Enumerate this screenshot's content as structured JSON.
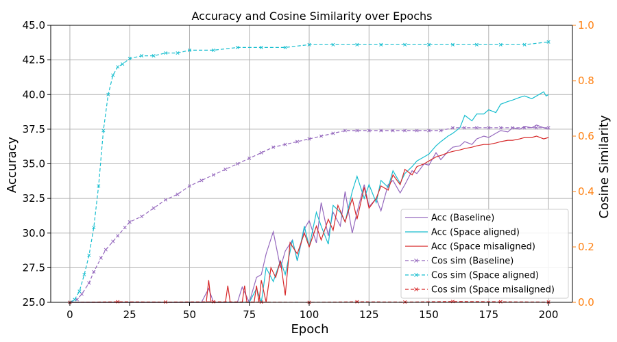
{
  "chart_data": {
    "type": "line",
    "title": "Accuracy and Cosine Similarity over Epochs",
    "xlabel": "Epoch",
    "ylabel": "Accuracy",
    "y2label": "Cosine Similarity",
    "xlim": [
      -8,
      210
    ],
    "ylim": [
      25.0,
      45.0
    ],
    "y2lim": [
      0.0,
      1.0
    ],
    "xticks": [
      0,
      25,
      50,
      75,
      100,
      125,
      150,
      175,
      200
    ],
    "yticks": [
      25.0,
      27.5,
      30.0,
      32.5,
      35.0,
      37.5,
      40.0,
      42.5,
      45.0
    ],
    "ytick_labels": [
      "25.0",
      "27.5",
      "30.0",
      "32.5",
      "35.0",
      "37.5",
      "40.0",
      "42.5",
      "45.0"
    ],
    "y2ticks": [
      0.0,
      0.2,
      0.4,
      0.6,
      0.8,
      1.0
    ],
    "y2tick_labels": [
      "0.0",
      "0.2",
      "0.4",
      "0.6",
      "0.8",
      "1.0"
    ],
    "grid": true,
    "legend_position": "lower-right",
    "colors": {
      "baseline": "#9467bd",
      "aligned": "#17becf",
      "misaligned": "#d62728",
      "right_axis": "#ff7f0e",
      "grid": "#b0b0b0"
    },
    "series": [
      {
        "name": "Acc (Baseline)",
        "key": "baseline",
        "axis": "left",
        "style": "solid",
        "marker": "none",
        "x": [
          0,
          55,
          58,
          60,
          65,
          70,
          72,
          75,
          78,
          80,
          82,
          85,
          88,
          90,
          93,
          95,
          98,
          100,
          103,
          105,
          108,
          110,
          113,
          115,
          118,
          120,
          123,
          125,
          128,
          130,
          133,
          135,
          138,
          140,
          143,
          145,
          148,
          150,
          153,
          155,
          158,
          160,
          163,
          165,
          168,
          170,
          173,
          175,
          178,
          180,
          183,
          185,
          188,
          190,
          193,
          195,
          198,
          200
        ],
        "y": [
          25.0,
          25.0,
          26.0,
          25.0,
          25.0,
          25.0,
          26.1,
          25.0,
          26.8,
          27.0,
          28.5,
          30.1,
          27.5,
          28.7,
          29.5,
          28.0,
          30.3,
          30.9,
          29.3,
          32.2,
          29.8,
          31.5,
          30.5,
          33.0,
          30.0,
          31.5,
          33.5,
          31.9,
          32.5,
          31.6,
          33.5,
          33.8,
          32.9,
          33.5,
          34.5,
          34.3,
          35.0,
          34.9,
          35.8,
          35.3,
          35.9,
          36.2,
          36.3,
          36.6,
          36.4,
          36.8,
          37.0,
          36.9,
          37.2,
          37.4,
          37.3,
          37.6,
          37.5,
          37.7,
          37.6,
          37.8,
          37.6,
          37.5
        ]
      },
      {
        "name": "Acc (Space aligned)",
        "key": "aligned",
        "axis": "left",
        "style": "solid",
        "marker": "none",
        "x": [
          0,
          70,
          73,
          75,
          78,
          80,
          82,
          85,
          88,
          90,
          93,
          95,
          98,
          100,
          103,
          105,
          108,
          110,
          113,
          115,
          118,
          120,
          123,
          125,
          128,
          130,
          133,
          135,
          138,
          140,
          143,
          145,
          148,
          150,
          153,
          155,
          158,
          160,
          163,
          165,
          168,
          170,
          173,
          175,
          178,
          180,
          183,
          185,
          188,
          190,
          193,
          195,
          198,
          199,
          200
        ],
        "y": [
          25.0,
          25.0,
          25.0,
          25.0,
          26.0,
          25.0,
          27.5,
          26.5,
          28.0,
          27.0,
          29.5,
          28.0,
          30.5,
          29.0,
          31.5,
          30.5,
          29.2,
          32.0,
          31.5,
          30.8,
          33.0,
          34.1,
          32.5,
          33.5,
          32.2,
          33.8,
          33.3,
          34.5,
          33.6,
          34.3,
          34.8,
          35.2,
          35.5,
          35.7,
          36.3,
          36.6,
          37.0,
          37.2,
          37.6,
          38.5,
          38.1,
          38.6,
          38.6,
          38.9,
          38.7,
          39.3,
          39.5,
          39.6,
          39.8,
          39.9,
          39.7,
          39.9,
          40.2,
          39.9,
          40.0
        ]
      },
      {
        "name": "Acc (Space misaligned)",
        "key": "misaligned",
        "axis": "left",
        "style": "solid",
        "marker": "none",
        "x": [
          0,
          57,
          58,
          59,
          65,
          66,
          67,
          68,
          72,
          73,
          74,
          77,
          78,
          79,
          80,
          82,
          84,
          86,
          88,
          90,
          92,
          95,
          98,
          100,
          103,
          105,
          108,
          110,
          112,
          115,
          118,
          120,
          123,
          125,
          128,
          130,
          133,
          135,
          138,
          140,
          143,
          145,
          148,
          150,
          153,
          155,
          158,
          160,
          163,
          165,
          168,
          170,
          173,
          175,
          178,
          180,
          183,
          185,
          188,
          190,
          193,
          195,
          198,
          200
        ],
        "y": [
          25.0,
          25.0,
          26.6,
          25.0,
          25.0,
          26.2,
          25.0,
          25.0,
          25.0,
          26.2,
          25.0,
          25.0,
          26.2,
          25.0,
          26.6,
          25.0,
          27.5,
          26.8,
          28.0,
          25.5,
          29.3,
          28.5,
          30.0,
          29.0,
          30.5,
          29.5,
          31.0,
          30.2,
          32.0,
          30.8,
          32.5,
          31.0,
          33.3,
          31.8,
          32.5,
          33.4,
          33.1,
          34.2,
          33.5,
          34.6,
          34.2,
          34.8,
          35.0,
          35.2,
          35.5,
          35.6,
          35.8,
          35.9,
          36.0,
          36.1,
          36.2,
          36.3,
          36.4,
          36.4,
          36.5,
          36.6,
          36.7,
          36.7,
          36.8,
          36.9,
          36.9,
          37.0,
          36.8,
          36.9
        ]
      },
      {
        "name": "Cos sim (Baseline)",
        "key": "baseline",
        "axis": "right",
        "style": "dashed",
        "marker": "x",
        "x": [
          0,
          3,
          5,
          8,
          10,
          13,
          15,
          18,
          20,
          23,
          25,
          30,
          35,
          40,
          45,
          50,
          55,
          60,
          65,
          70,
          75,
          80,
          85,
          90,
          95,
          100,
          105,
          110,
          115,
          120,
          125,
          130,
          135,
          140,
          145,
          150,
          155,
          160,
          165,
          170,
          175,
          180,
          185,
          190,
          195,
          200
        ],
        "y": [
          0.0,
          0.01,
          0.03,
          0.07,
          0.11,
          0.16,
          0.19,
          0.22,
          0.24,
          0.27,
          0.29,
          0.31,
          0.34,
          0.37,
          0.39,
          0.42,
          0.44,
          0.46,
          0.48,
          0.5,
          0.52,
          0.54,
          0.56,
          0.57,
          0.58,
          0.59,
          0.6,
          0.61,
          0.62,
          0.62,
          0.62,
          0.62,
          0.62,
          0.62,
          0.62,
          0.62,
          0.62,
          0.63,
          0.63,
          0.63,
          0.63,
          0.63,
          0.63,
          0.63,
          0.63,
          0.63
        ]
      },
      {
        "name": "Cos sim (Space aligned)",
        "key": "aligned",
        "axis": "right",
        "style": "dashed",
        "marker": "x",
        "x": [
          0,
          2,
          4,
          6,
          8,
          10,
          12,
          14,
          16,
          18,
          20,
          22,
          25,
          30,
          35,
          40,
          45,
          50,
          60,
          70,
          80,
          90,
          100,
          110,
          120,
          130,
          140,
          150,
          160,
          170,
          180,
          190,
          200
        ],
        "y": [
          0.0,
          0.01,
          0.04,
          0.1,
          0.17,
          0.27,
          0.42,
          0.62,
          0.75,
          0.82,
          0.85,
          0.86,
          0.88,
          0.89,
          0.89,
          0.9,
          0.9,
          0.91,
          0.91,
          0.92,
          0.92,
          0.92,
          0.93,
          0.93,
          0.93,
          0.93,
          0.93,
          0.93,
          0.93,
          0.93,
          0.93,
          0.93,
          0.94
        ]
      },
      {
        "name": "Cos sim (Space misaligned)",
        "key": "misaligned",
        "axis": "right",
        "style": "dashed",
        "marker": "x",
        "x": [
          0,
          20,
          40,
          60,
          80,
          100,
          120,
          140,
          160,
          180,
          200
        ],
        "y": [
          0.0,
          0.002,
          0.001,
          0.002,
          0.001,
          0.0,
          0.002,
          0.001,
          0.003,
          0.002,
          0.001
        ]
      }
    ]
  }
}
